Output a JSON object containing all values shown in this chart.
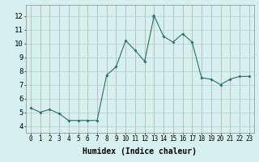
{
  "x": [
    0,
    1,
    2,
    3,
    4,
    5,
    6,
    7,
    8,
    9,
    10,
    11,
    12,
    13,
    14,
    15,
    16,
    17,
    18,
    19,
    20,
    21,
    22,
    23
  ],
  "y": [
    5.3,
    5.0,
    5.2,
    4.9,
    4.4,
    4.4,
    4.4,
    4.4,
    7.7,
    8.3,
    10.2,
    9.5,
    8.7,
    12.0,
    10.5,
    10.1,
    10.7,
    10.1,
    7.5,
    7.4,
    7.0,
    7.4,
    7.6,
    7.6
  ],
  "xlabel": "Humidex (Indice chaleur)",
  "ylim": [
    3.5,
    12.8
  ],
  "xlim": [
    -0.5,
    23.5
  ],
  "yticks": [
    4,
    5,
    6,
    7,
    8,
    9,
    10,
    11,
    12
  ],
  "xticks": [
    0,
    1,
    2,
    3,
    4,
    5,
    6,
    7,
    8,
    9,
    10,
    11,
    12,
    13,
    14,
    15,
    16,
    17,
    18,
    19,
    20,
    21,
    22,
    23
  ],
  "line_color": "#2e6e63",
  "bg_color": "#d6f0ef",
  "grid_color": "#b5d8d5",
  "special_marker_idx": 13
}
